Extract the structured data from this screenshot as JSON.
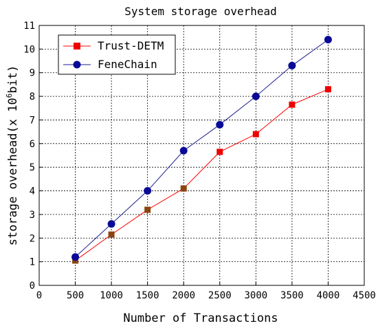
{
  "chart_data": {
    "type": "line",
    "title": "System storage overhead",
    "xlabel": "Number of Transactions",
    "ylabel_main": "storage overhead(x 10",
    "ylabel_sup": "6",
    "ylabel_tail": "bit)",
    "xlim": [
      0,
      4500
    ],
    "ylim": [
      0,
      11
    ],
    "xticks": [
      0,
      500,
      1000,
      1500,
      2000,
      2500,
      3000,
      3500,
      4000,
      4500
    ],
    "yticks": [
      0,
      1,
      2,
      3,
      4,
      5,
      6,
      7,
      8,
      9,
      10,
      11
    ],
    "grid": true,
    "legend_position": "top-left",
    "x": [
      500,
      1000,
      1500,
      2000,
      2500,
      3000,
      3500,
      4000
    ],
    "series": [
      {
        "name": "Trust-DETM",
        "values": [
          1.05,
          2.15,
          3.2,
          4.1,
          5.65,
          6.4,
          7.65,
          8.3
        ],
        "color": "#ff0000",
        "marker": "square",
        "marker_color": "#ee0000",
        "overlap_marker_color": "#8b4513"
      },
      {
        "name": "FeneChain",
        "values": [
          1.2,
          2.6,
          4.0,
          5.7,
          6.8,
          8.0,
          9.3,
          10.4
        ],
        "color": "#1c1c8c",
        "marker": "circle",
        "marker_color": "#0a0a96"
      }
    ]
  }
}
